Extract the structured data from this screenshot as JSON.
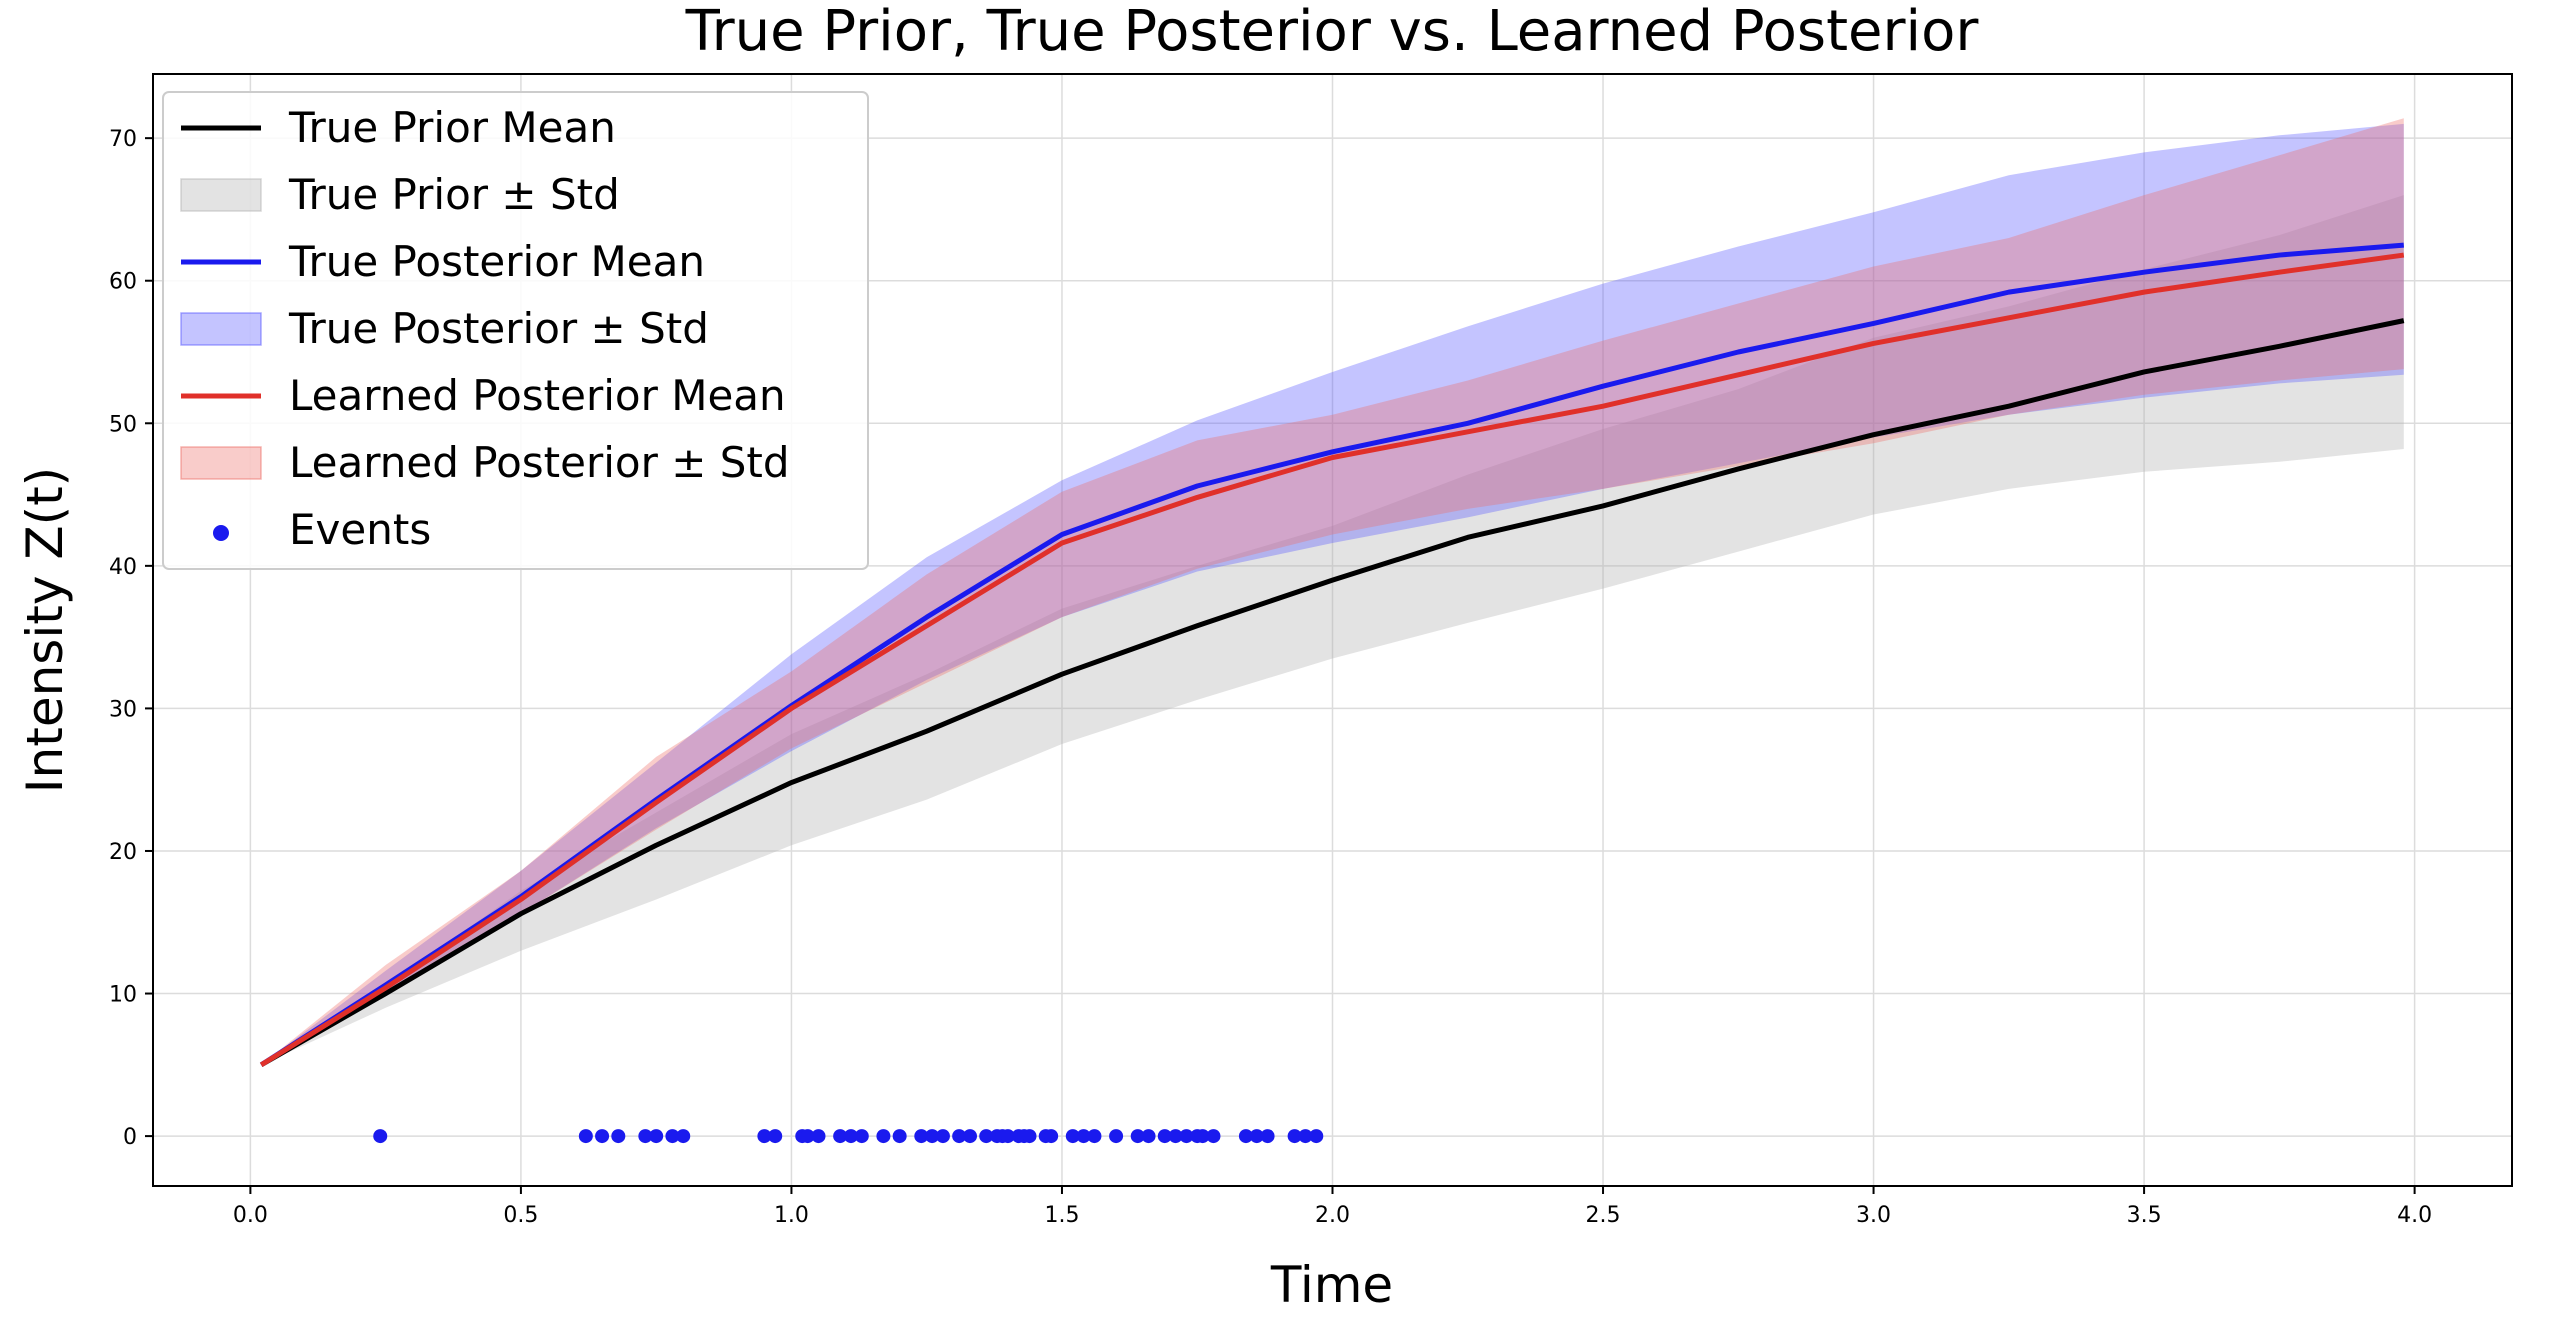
{
  "chart_data": {
    "type": "line",
    "title": "True Prior, True Posterior vs. Learned Posterior",
    "xlabel": "Time",
    "ylabel": "Intensity Z(t)",
    "xlim": [
      -0.18,
      4.18
    ],
    "ylim": [
      -3.5,
      74.5
    ],
    "xticks": [
      0.0,
      0.5,
      1.0,
      1.5,
      2.0,
      2.5,
      3.0,
      3.5,
      4.0
    ],
    "xtick_labels": [
      "0.0",
      "0.5",
      "1.0",
      "1.5",
      "2.0",
      "2.5",
      "3.0",
      "3.5",
      "4.0"
    ],
    "yticks": [
      0,
      10,
      20,
      30,
      40,
      50,
      60,
      70
    ],
    "ytick_labels": [
      "0",
      "10",
      "20",
      "30",
      "40",
      "50",
      "60",
      "70"
    ],
    "grid": true,
    "legend_position": "top-left",
    "x": [
      0.02,
      0.25,
      0.5,
      0.75,
      1.0,
      1.25,
      1.5,
      1.75,
      2.0,
      2.25,
      2.5,
      2.75,
      3.0,
      3.25,
      3.5,
      3.75,
      3.98
    ],
    "series": [
      {
        "name": "True Prior Mean",
        "kind": "line",
        "color": "#000000",
        "values": [
          5.0,
          10.0,
          15.6,
          20.4,
          24.8,
          28.4,
          32.4,
          35.8,
          39.0,
          42.0,
          44.2,
          46.8,
          49.2,
          51.2,
          53.6,
          55.4,
          57.2
        ]
      },
      {
        "name": "True Prior ± Std",
        "kind": "band",
        "color": "#b0b0b0",
        "lower": [
          5.0,
          9.0,
          13.0,
          16.6,
          20.4,
          23.6,
          27.5,
          30.6,
          33.5,
          36.0,
          38.4,
          41.0,
          43.6,
          45.4,
          46.6,
          47.3,
          48.2
        ],
        "upper": [
          5.0,
          10.5,
          17.2,
          22.7,
          28.2,
          32.4,
          37.0,
          40.0,
          42.8,
          46.4,
          49.6,
          52.4,
          56.0,
          58.2,
          60.8,
          63.2,
          66.0
        ]
      },
      {
        "name": "True Posterior Mean",
        "kind": "line",
        "color": "#1a1aee",
        "values": [
          5.0,
          10.6,
          16.8,
          23.6,
          30.2,
          36.4,
          42.2,
          45.6,
          48.0,
          50.0,
          52.6,
          55.0,
          57.0,
          59.2,
          60.6,
          61.8,
          62.5
        ]
      },
      {
        "name": "True Posterior ± Std",
        "kind": "band",
        "color": "#5555ff",
        "lower": [
          5.0,
          9.8,
          15.6,
          21.6,
          27.0,
          32.0,
          36.4,
          39.6,
          41.6,
          43.4,
          45.4,
          47.2,
          49.0,
          50.6,
          51.8,
          52.8,
          53.4
        ],
        "upper": [
          5.0,
          11.6,
          18.6,
          26.2,
          33.8,
          40.6,
          46.0,
          50.2,
          53.6,
          56.8,
          59.8,
          62.4,
          64.8,
          67.4,
          69.0,
          70.2,
          71.0
        ]
      },
      {
        "name": "Learned Posterior Mean",
        "kind": "line",
        "color": "#e0302a",
        "values": [
          5.0,
          10.4,
          16.6,
          23.4,
          30.0,
          35.8,
          41.6,
          44.8,
          47.6,
          49.4,
          51.2,
          53.4,
          55.6,
          57.4,
          59.2,
          60.6,
          61.8
        ]
      },
      {
        "name": "Learned Posterior ± Std",
        "kind": "band",
        "color": "#ee6e66",
        "lower": [
          5.0,
          9.8,
          15.6,
          21.5,
          27.2,
          31.8,
          36.4,
          39.8,
          42.2,
          44.0,
          45.4,
          47.0,
          48.6,
          50.6,
          52.0,
          53.0,
          53.8
        ],
        "upper": [
          5.0,
          12.0,
          18.6,
          26.6,
          32.6,
          39.4,
          45.2,
          48.8,
          50.6,
          53.0,
          55.8,
          58.4,
          61.0,
          63.0,
          66.0,
          68.8,
          71.4
        ]
      }
    ],
    "events": {
      "name": "Events",
      "color": "#1a1aee",
      "y": 0,
      "x": [
        0.24,
        0.62,
        0.65,
        0.68,
        0.73,
        0.75,
        0.78,
        0.8,
        0.95,
        0.97,
        1.02,
        1.03,
        1.05,
        1.09,
        1.11,
        1.13,
        1.17,
        1.2,
        1.24,
        1.26,
        1.28,
        1.31,
        1.33,
        1.36,
        1.38,
        1.39,
        1.4,
        1.42,
        1.43,
        1.44,
        1.47,
        1.48,
        1.52,
        1.54,
        1.56,
        1.6,
        1.64,
        1.66,
        1.69,
        1.71,
        1.73,
        1.75,
        1.76,
        1.78,
        1.84,
        1.86,
        1.88,
        1.93,
        1.95,
        1.97
      ]
    }
  }
}
